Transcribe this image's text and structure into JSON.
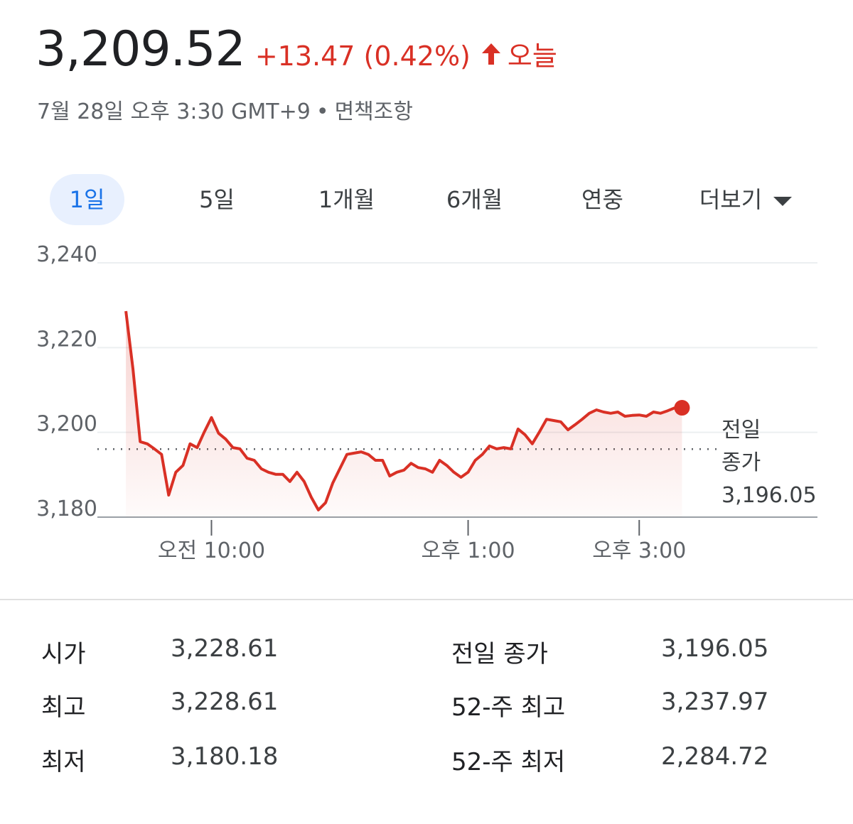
{
  "header": {
    "price": "3,209.52",
    "change": "+13.47 (0.42%)",
    "period": "오늘",
    "timestamp": "7월 28일 오후 3:30 GMT+9",
    "separator": "•",
    "disclaimer": "면책조항"
  },
  "tabs": {
    "items": [
      "1일",
      "5일",
      "1개월",
      "6개월",
      "연중",
      "더보기"
    ],
    "selected": 0
  },
  "chart_data": {
    "type": "line",
    "color": "#d93025",
    "x": [
      "09:00",
      "09:05",
      "09:10",
      "09:15",
      "09:20",
      "09:25",
      "09:30",
      "09:35",
      "09:40",
      "09:45",
      "09:50",
      "09:55",
      "10:00",
      "10:05",
      "10:10",
      "10:15",
      "10:20",
      "10:25",
      "10:30",
      "10:35",
      "10:40",
      "10:45",
      "10:50",
      "10:55",
      "11:00",
      "11:05",
      "11:10",
      "11:15",
      "11:20",
      "11:25",
      "11:30",
      "11:35",
      "11:40",
      "11:45",
      "11:50",
      "11:55",
      "12:00",
      "12:05",
      "12:10",
      "12:15",
      "12:20",
      "12:25",
      "12:30",
      "12:35",
      "12:40",
      "12:45",
      "12:50",
      "12:55",
      "13:00",
      "13:05",
      "13:10",
      "13:15",
      "13:20",
      "13:25",
      "13:30",
      "13:35",
      "13:40",
      "13:45",
      "13:50",
      "13:55",
      "14:00",
      "14:05",
      "14:10",
      "14:15",
      "14:20",
      "14:25",
      "14:30",
      "14:35",
      "14:40",
      "14:45",
      "14:50",
      "14:55",
      "15:00",
      "15:05",
      "15:10",
      "15:15",
      "15:20",
      "15:25",
      "15:30"
    ],
    "values": [
      3228.6,
      3214.9,
      3197.8,
      3197.3,
      3196.1,
      3194.8,
      3185.2,
      3190.6,
      3192.2,
      3197.3,
      3196.4,
      3200.1,
      3203.5,
      3199.8,
      3198.4,
      3196.4,
      3196.1,
      3193.9,
      3193.4,
      3191.4,
      3190.6,
      3190.1,
      3190.1,
      3188.4,
      3190.6,
      3188.4,
      3184.7,
      3181.7,
      3183.4,
      3188.0,
      3191.4,
      3194.8,
      3195.1,
      3195.4,
      3194.8,
      3193.4,
      3193.4,
      3189.7,
      3190.6,
      3191.1,
      3192.7,
      3191.7,
      3191.4,
      3190.6,
      3193.4,
      3192.2,
      3190.6,
      3189.4,
      3190.6,
      3193.4,
      3194.8,
      3196.8,
      3196.1,
      3196.4,
      3196.1,
      3200.8,
      3199.4,
      3197.3,
      3200.1,
      3203.1,
      3202.8,
      3202.5,
      3200.6,
      3201.8,
      3203.1,
      3204.5,
      3205.3,
      3204.8,
      3204.5,
      3204.8,
      3203.8,
      3204.0,
      3204.1,
      3203.8,
      3204.8,
      3204.5,
      3205.1,
      3205.8,
      3205.8
    ],
    "xlim": [
      "08:40",
      "17:05"
    ],
    "xticks": [
      {
        "value": "10:00",
        "label": "오전 10:00"
      },
      {
        "value": "13:00",
        "label": "오후 1:00"
      },
      {
        "value": "15:00",
        "label": "오후 3:00"
      }
    ],
    "ylim": [
      3180,
      3240
    ],
    "yticks": [
      {
        "value": 3180,
        "label": "3,180"
      },
      {
        "value": 3200,
        "label": "3,200"
      },
      {
        "value": 3220,
        "label": "3,220"
      },
      {
        "value": 3240,
        "label": "3,240"
      }
    ],
    "grid": true,
    "reference_line": {
      "label_lines": [
        "전일",
        "종가"
      ],
      "value": 3196.05,
      "value_label": "3,196.05"
    }
  },
  "stats": {
    "rows": [
      [
        "시가",
        "3,228.61",
        "전일 종가",
        "3,196.05"
      ],
      [
        "최고",
        "3,228.61",
        "52-주 최고",
        "3,237.97"
      ],
      [
        "최저",
        "3,180.18",
        "52-주 최저",
        "2,284.72"
      ]
    ]
  }
}
